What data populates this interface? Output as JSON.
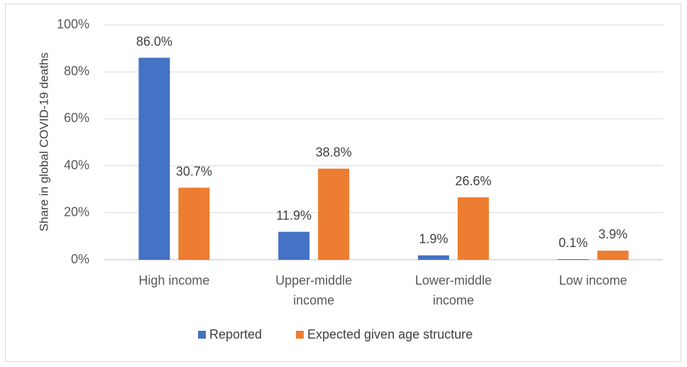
{
  "chart_data": {
    "type": "bar",
    "title": "",
    "xlabel": "",
    "ylabel": "Share in global COVID-19 deaths",
    "ylim": [
      0,
      100
    ],
    "yticks": [
      "0%",
      "20%",
      "40%",
      "60%",
      "80%",
      "100%"
    ],
    "ytick_values": [
      0,
      20,
      40,
      60,
      80,
      100
    ],
    "grid": true,
    "legend_position": "bottom",
    "categories": [
      [
        "High income"
      ],
      [
        "Upper-middle",
        "income"
      ],
      [
        "Lower-middle",
        "income"
      ],
      [
        "Low income"
      ]
    ],
    "series": [
      {
        "name": "Reported",
        "color": "#4472c4",
        "values": [
          86.0,
          11.9,
          1.9,
          0.1
        ],
        "labels": [
          "86.0%",
          "11.9%",
          "1.9%",
          "0.1%"
        ]
      },
      {
        "name": "Expected given age structure",
        "color": "#ed7d31",
        "values": [
          30.7,
          38.8,
          26.6,
          3.9
        ],
        "labels": [
          "30.7%",
          "38.8%",
          "26.6%",
          "3.9%"
        ]
      }
    ]
  }
}
